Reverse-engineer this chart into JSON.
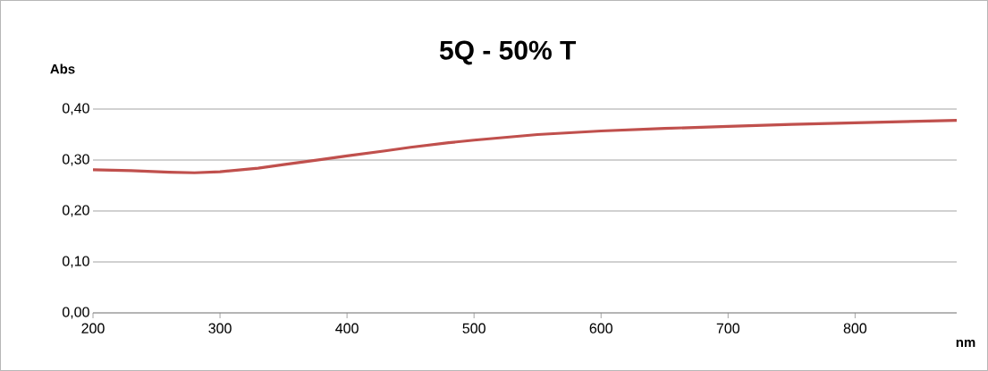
{
  "chart_data": {
    "type": "line",
    "title": "5Q - 50% T",
    "xlabel": "nm",
    "ylabel": "Abs",
    "x": [
      200,
      230,
      260,
      280,
      300,
      330,
      350,
      380,
      400,
      430,
      450,
      480,
      500,
      550,
      600,
      650,
      700,
      750,
      800,
      850,
      880
    ],
    "series": [
      {
        "color": "#c0504d",
        "values": [
          0.281,
          0.279,
          0.276,
          0.275,
          0.277,
          0.284,
          0.291,
          0.301,
          0.308,
          0.318,
          0.325,
          0.334,
          0.339,
          0.35,
          0.357,
          0.362,
          0.366,
          0.37,
          0.373,
          0.376,
          0.378
        ]
      }
    ],
    "xlim": [
      200,
      880
    ],
    "xticks": [
      200,
      300,
      400,
      500,
      600,
      700,
      800
    ],
    "ylim": [
      0,
      0.4
    ],
    "yticks": [
      {
        "value": 0,
        "label": "0,00"
      },
      {
        "value": 0.1,
        "label": "0,10"
      },
      {
        "value": 0.2,
        "label": "0,20"
      },
      {
        "value": 0.3,
        "label": "0,30"
      },
      {
        "value": 0.4,
        "label": "0,40"
      }
    ],
    "grid": "y",
    "marker": "none",
    "line_style": "solid"
  }
}
